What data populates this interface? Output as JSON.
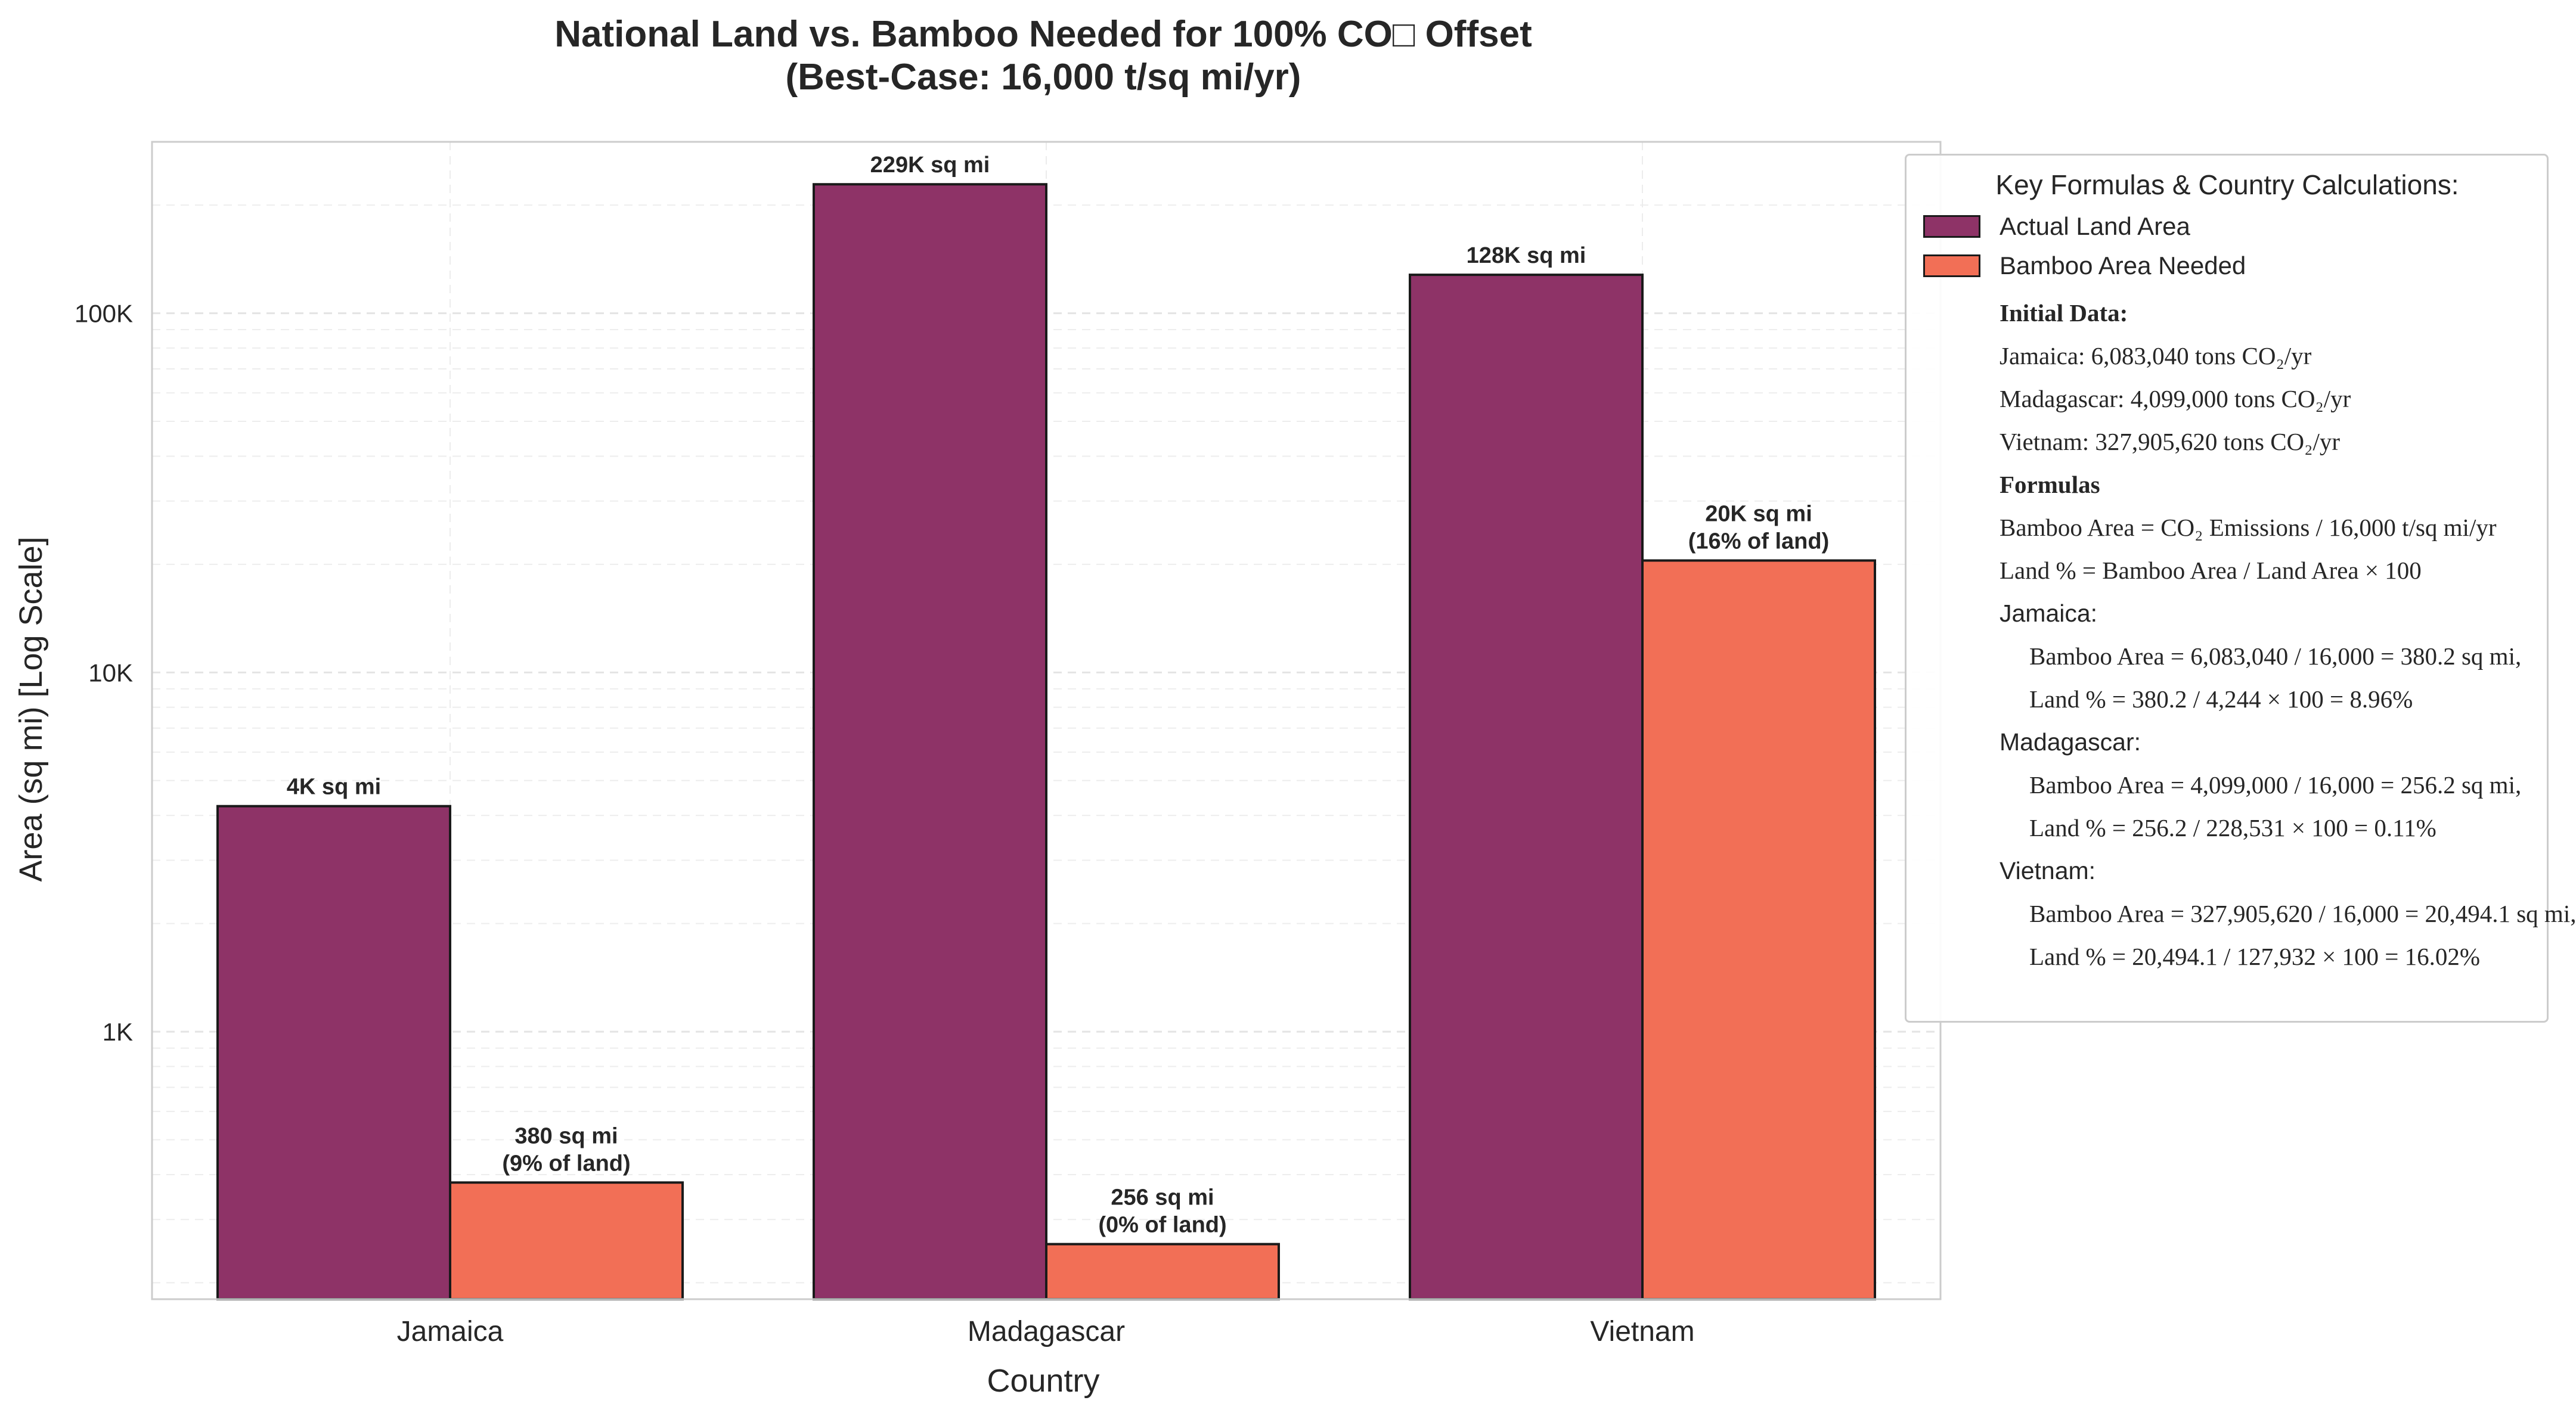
{
  "chart_data": {
    "type": "bar",
    "title": "National Land vs. Bamboo Needed for 100% CO□ Offset",
    "subtitle": "(Best-Case: 16,000 t/sq mi/yr)",
    "xlabel": "Country",
    "ylabel": "Area (sq mi) [Log Scale]",
    "y_scale": "log",
    "ylim": [
      180,
      300000
    ],
    "y_ticks": [
      {
        "value": 1000,
        "label": "1K"
      },
      {
        "value": 10000,
        "label": "10K"
      },
      {
        "value": 100000,
        "label": "100K"
      }
    ],
    "categories": [
      "Jamaica",
      "Madagascar",
      "Vietnam"
    ],
    "series": [
      {
        "name": "Actual Land Area",
        "color": "#8e3367",
        "values": [
          4244,
          228531,
          127932
        ],
        "labels": [
          "4K sq mi",
          "229K sq mi",
          "128K sq mi"
        ]
      },
      {
        "name": "Bamboo Area Needed",
        "color": "#f26f56",
        "values": [
          380.2,
          256.2,
          20494.1
        ],
        "labels": [
          "380 sq mi\n(9% of land)",
          "256 sq mi\n(0% of land)",
          "20K sq mi\n(16% of land)"
        ]
      }
    ],
    "grid": true,
    "legend_position": "right"
  },
  "legend": {
    "title": "Key Formulas & Country Calculations:",
    "lines": [
      {
        "text": "Initial Data:",
        "style": "bold"
      },
      {
        "text": "Jamaica: 6,083,040 tons CO₂/yr",
        "style": "normal"
      },
      {
        "text": "Madagascar: 4,099,000 tons CO₂/yr",
        "style": "normal"
      },
      {
        "text": "Vietnam: 327,905,620 tons CO₂/yr",
        "style": "normal"
      },
      {
        "text": "Formulas",
        "style": "bold"
      },
      {
        "text": "Bamboo Area = CO₂ Emissions / 16,000 t/sq mi/yr",
        "style": "normal"
      },
      {
        "text": "Land % = Bamboo Area / Land Area × 100",
        "style": "normal"
      },
      {
        "text": "Jamaica:",
        "style": "sans"
      },
      {
        "text": "Bamboo Area = 6,083,040 / 16,000 = 380.2 sq mi,",
        "style": "indent"
      },
      {
        "text": "Land % = 380.2 / 4,244 × 100 = 8.96%",
        "style": "indent"
      },
      {
        "text": "Madagascar:",
        "style": "sans"
      },
      {
        "text": "Bamboo Area = 4,099,000 / 16,000 = 256.2 sq mi,",
        "style": "indent"
      },
      {
        "text": "Land % = 256.2 / 228,531 × 100 = 0.11%",
        "style": "indent"
      },
      {
        "text": "Vietnam:",
        "style": "sans"
      },
      {
        "text": "Bamboo Area = 327,905,620 / 16,000 = 20,494.1 sq mi,",
        "style": "indent"
      },
      {
        "text": "Land % = 20,494.1 / 127,932 × 100 = 16.02%",
        "style": "indent"
      }
    ]
  }
}
